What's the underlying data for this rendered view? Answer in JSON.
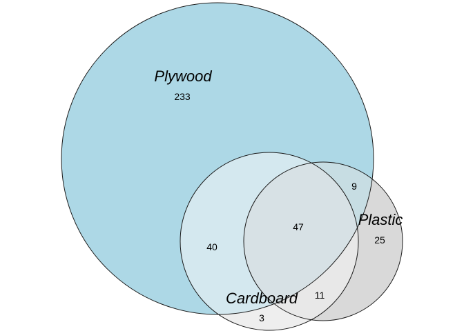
{
  "diagram": {
    "type": "venn",
    "sets": [
      {
        "name": "Plywood",
        "fill": "#add8e6"
      },
      {
        "name": "Cardboard",
        "fill": "#e6f2f5"
      },
      {
        "name": "Plastic",
        "fill": "#d9d9d9"
      }
    ],
    "colors": {
      "cardboard_only": "#eeeeee",
      "plywood_cardboard": "#d4e8ef",
      "plywood_plastic": "#c7dde3",
      "all_three": "#d7e1e5",
      "cardboard_plastic": "#e8e8e8",
      "plastic_only": "#d9d9d9"
    },
    "regions": {
      "plywood_only": "233",
      "plywood_cardboard": "40",
      "plywood_plastic": "9",
      "all_three": "47",
      "plastic_only": "25",
      "cardboard_plastic": "11",
      "cardboard_only": "3"
    }
  }
}
